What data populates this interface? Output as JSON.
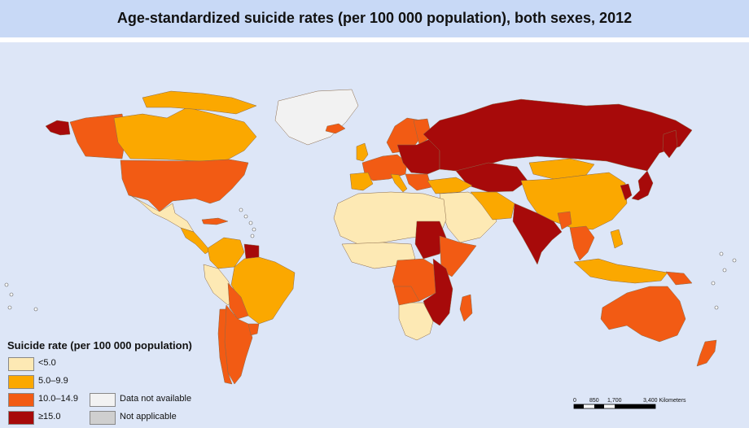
{
  "title": "Age-standardized suicide rates (per 100 000 population), both sexes, 2012",
  "colors": {
    "ocean": "#dde6f7",
    "lt5": "#fde9b4",
    "c5to10": "#fba800",
    "c10to15": "#f25b14",
    "ge15": "#a70a0a",
    "na": "#f2f2f2",
    "napp": "#cfcfcf"
  },
  "legend": {
    "title": "Suicide rate (per 100 000 population)",
    "items": [
      {
        "label": "<5.0",
        "key": "lt5"
      },
      {
        "label": "5.0–9.9",
        "key": "c5to10"
      },
      {
        "label": "10.0–14.9",
        "key": "c10to15"
      },
      {
        "label": "≥15.0",
        "key": "ge15"
      },
      {
        "label": "Data not available",
        "key": "na"
      },
      {
        "label": "Not applicable",
        "key": "napp"
      }
    ]
  },
  "scale_bar": {
    "ticks": [
      "0",
      "850",
      "1,700",
      "3,400 Kilometers"
    ]
  }
}
